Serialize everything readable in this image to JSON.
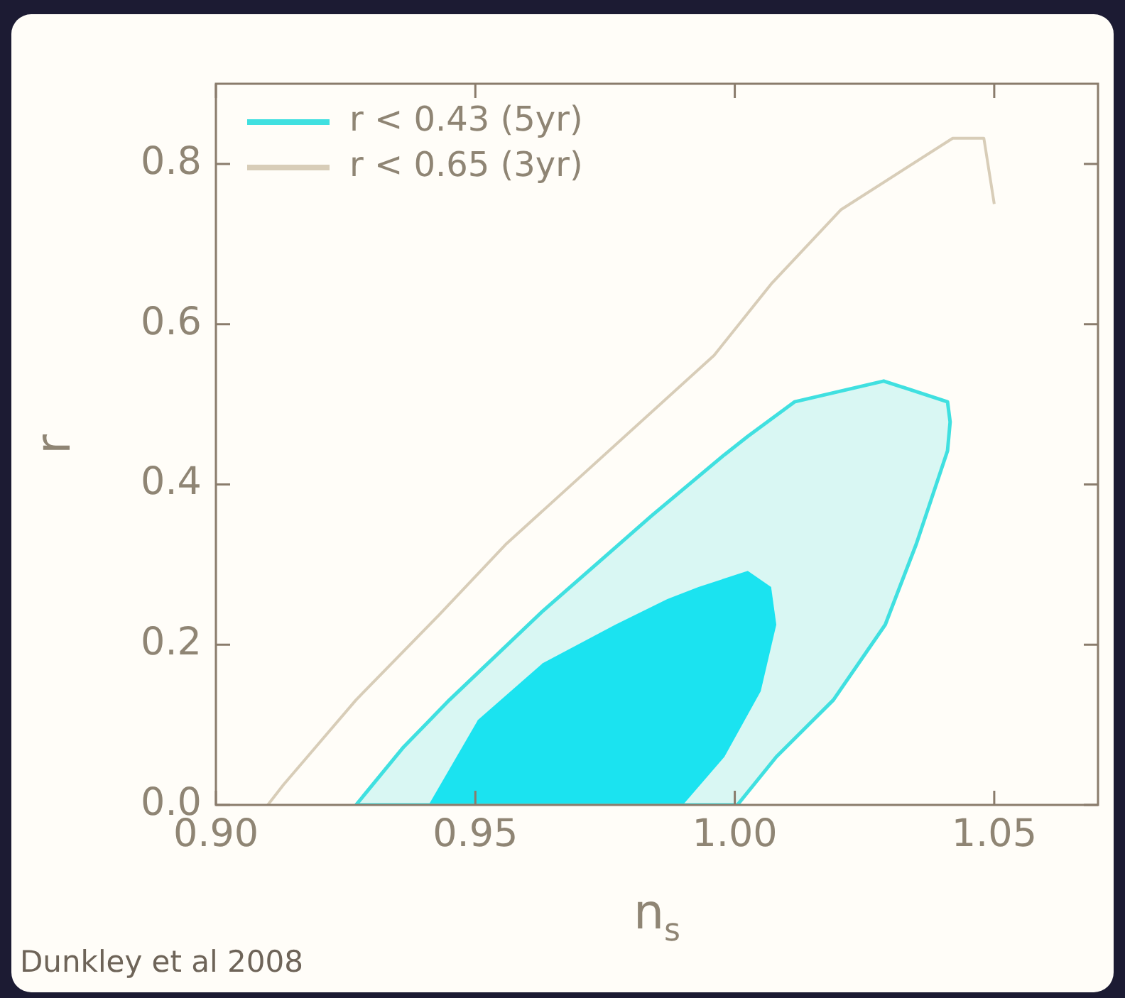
{
  "chart_data": {
    "type": "line",
    "xlabel": "n$_{s}$",
    "ylabel": "r",
    "xlim": [
      0.9,
      1.07
    ],
    "ylim": [
      0,
      0.9
    ],
    "xticks": [
      {
        "value": 0.9,
        "label": "0.90"
      },
      {
        "value": 0.95,
        "label": "0.95"
      },
      {
        "value": 1.0,
        "label": "1.00"
      },
      {
        "value": 1.05,
        "label": "1.05"
      }
    ],
    "yticks": [
      {
        "value": 0,
        "label": "0.0"
      },
      {
        "value": 0.2,
        "label": "0.2"
      },
      {
        "value": 0.4,
        "label": "0.4"
      },
      {
        "value": 0.6,
        "label": "0.6"
      },
      {
        "value": 0.8,
        "label": "0.8"
      }
    ],
    "grid": false,
    "legend": "top left",
    "marker": "none",
    "annotations": [
      "Dunkley et al 2008"
    ],
    "series": [
      {
        "name": "r < 0.43 (5yr)",
        "type": "area",
        "color": "#40e0e0",
        "x": [
          0.927,
          0.936,
          0.945,
          0.963,
          0.984,
          0.998,
          1.0025,
          1.0115,
          1.0287,
          1.041,
          1.0415,
          1.041,
          1.035,
          1.029,
          1.019,
          1.008,
          1.0005,
          0.927
        ],
        "values": [
          0,
          0.071,
          0.131,
          0.242,
          0.361,
          0.437,
          0.46,
          0.503,
          0.529,
          0.503,
          0.478,
          0.442,
          0.326,
          0.225,
          0.131,
          0.06,
          0,
          0
        ]
      },
      {
        "type": "area",
        "color": "#12e4f4",
        "x": [
          0.941,
          0.9505,
          0.963,
          0.977,
          0.987,
          0.993,
          1.0025,
          1.007,
          1.008,
          1.005,
          0.998,
          0.99,
          0.941
        ],
        "values": [
          0,
          0.106,
          0.177,
          0.225,
          0.257,
          0.272,
          0.292,
          0.272,
          0.225,
          0.142,
          0.06,
          0,
          0
        ]
      },
      {
        "name": "r < 0.65 (3yr)",
        "type": "line",
        "color": "#d8cdb8",
        "x": [
          0.91,
          0.913,
          0.927,
          0.943,
          0.956,
          0.996,
          1.007,
          1.0205,
          1.042,
          1.048,
          1.05
        ],
        "values": [
          0,
          0.025,
          0.131,
          0.237,
          0.326,
          0.561,
          0.65,
          0.743,
          0.832,
          0.832,
          0.75
        ]
      }
    ]
  }
}
